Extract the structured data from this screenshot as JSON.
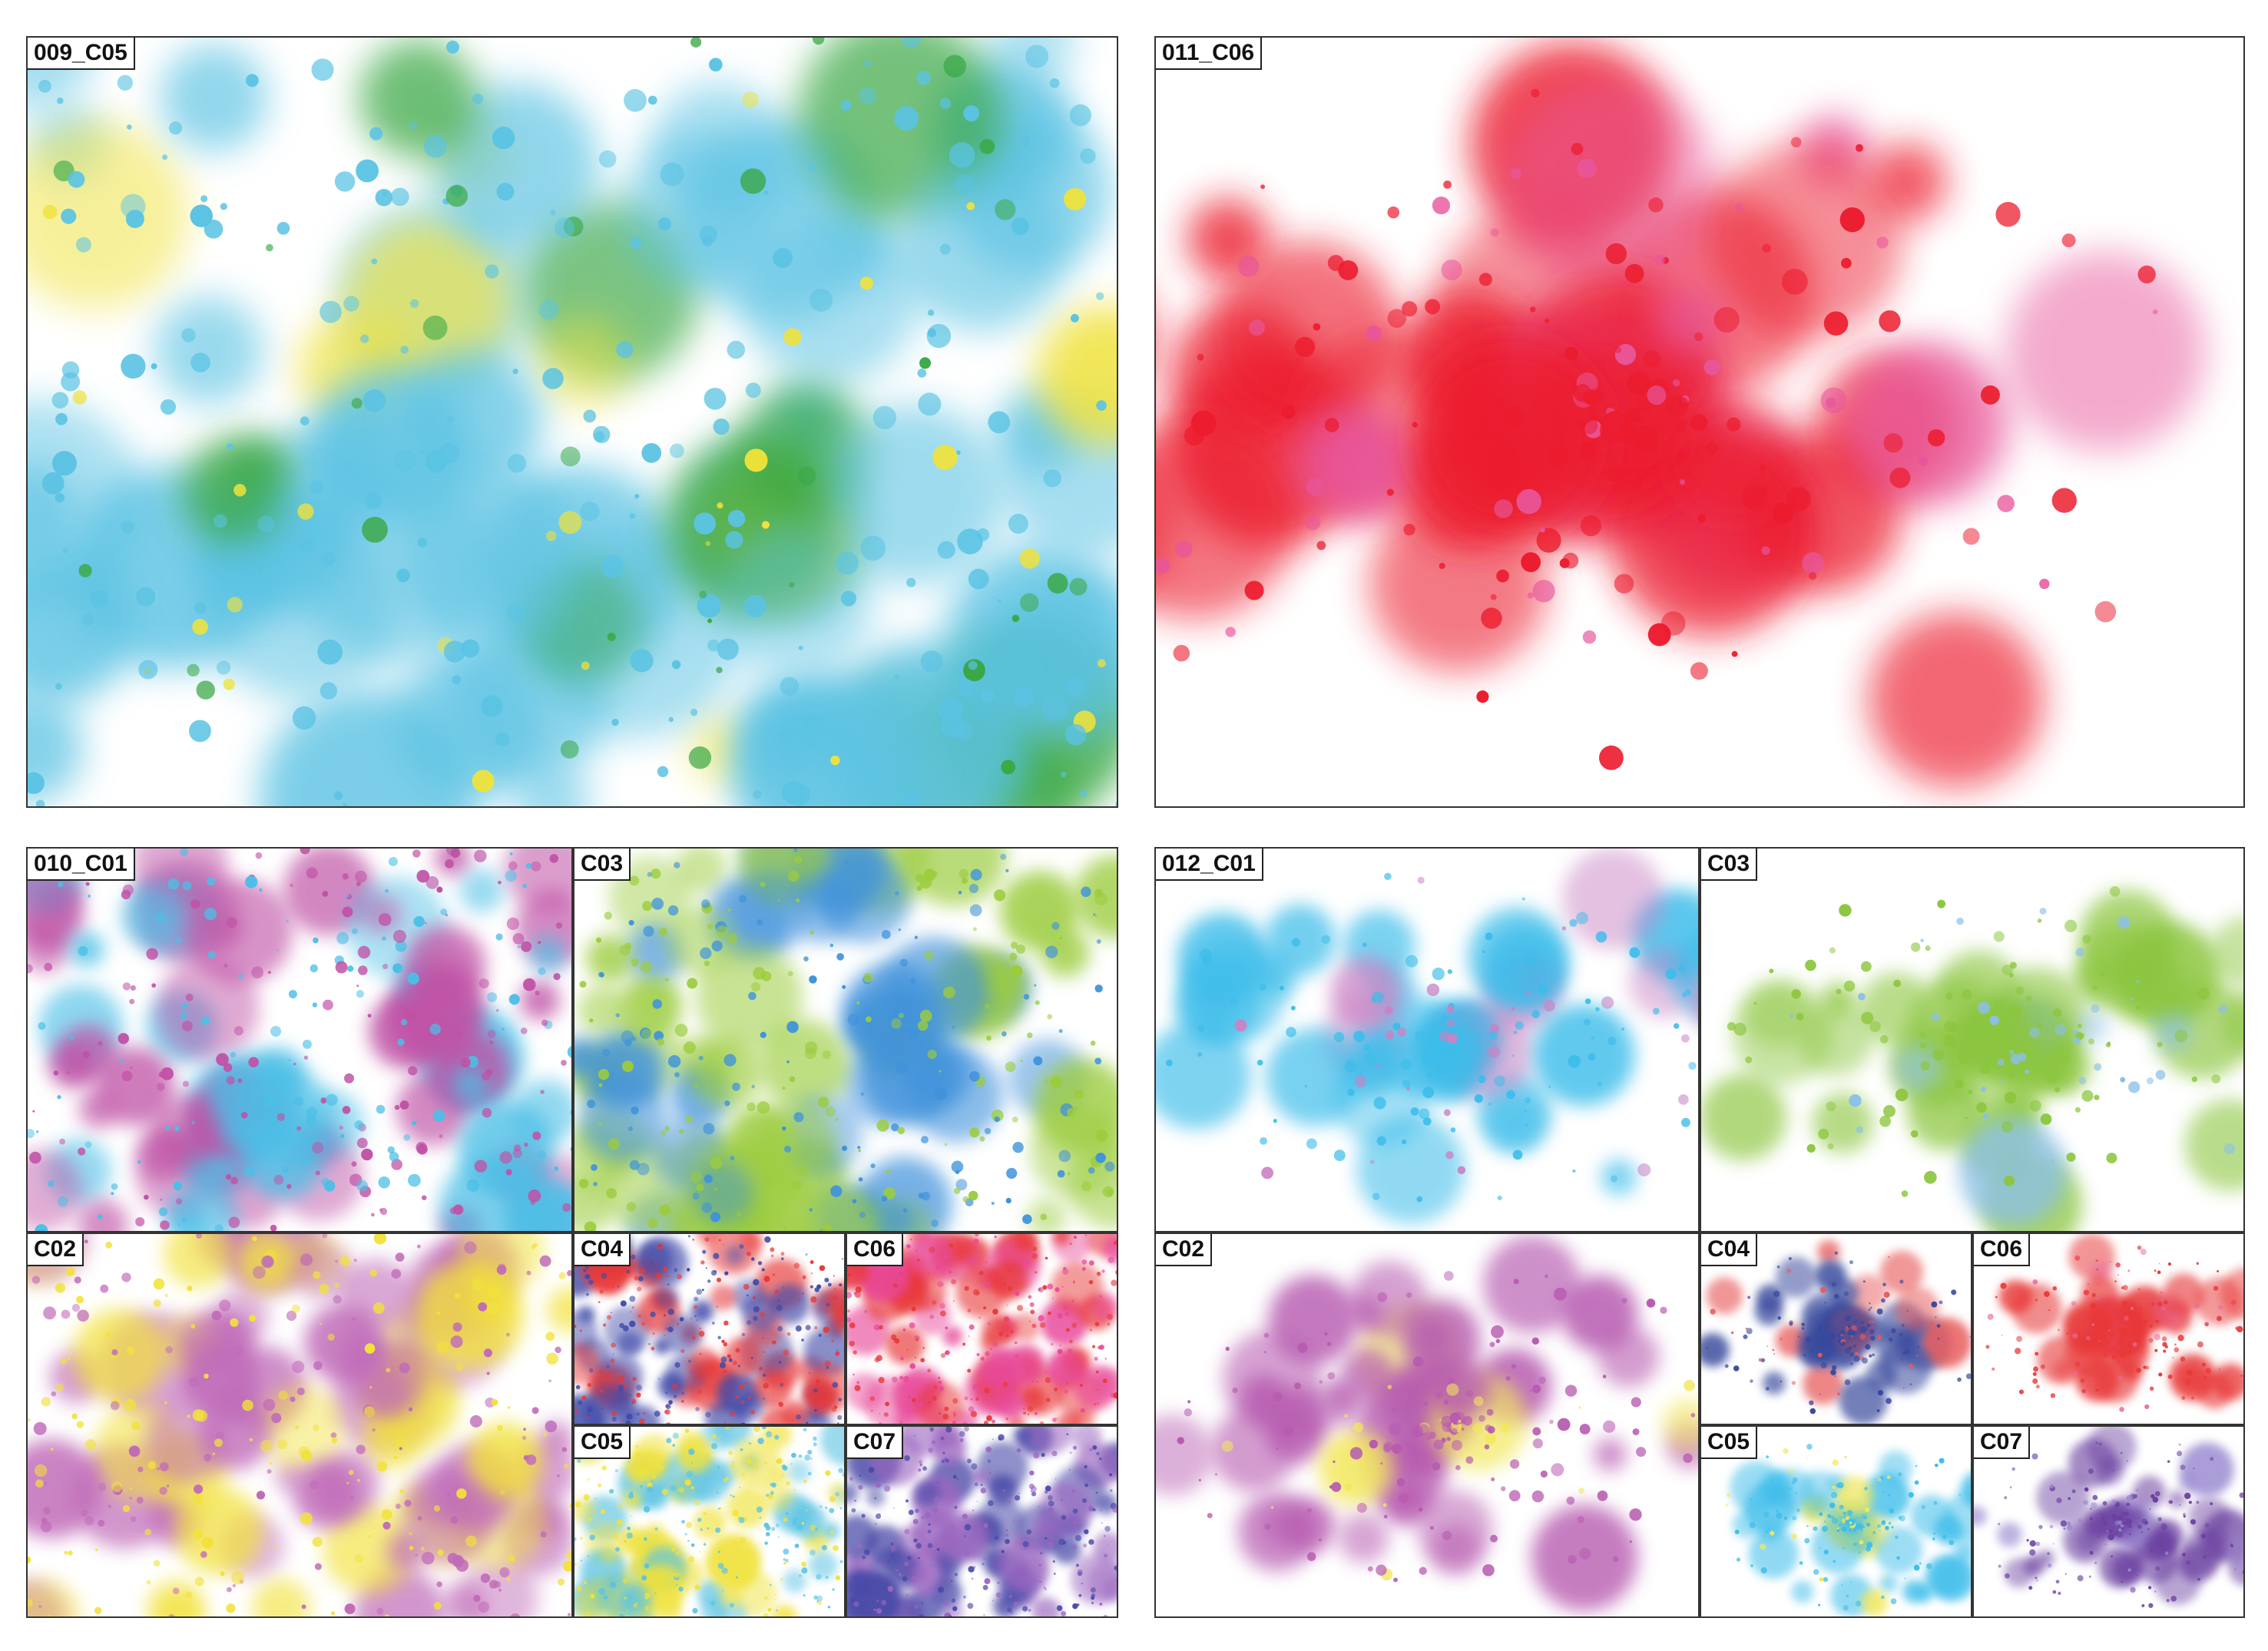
{
  "panels": [
    {
      "label": "009_C05"
    },
    {
      "label": "011_C06"
    },
    {
      "label": "010_C01"
    },
    {
      "label": "C03"
    },
    {
      "label": "C02"
    },
    {
      "label": "C04"
    },
    {
      "label": "C06"
    },
    {
      "label": "C05"
    },
    {
      "label": "C07"
    },
    {
      "label": "012_C01"
    },
    {
      "label": "C03"
    },
    {
      "label": "C02"
    },
    {
      "label": "C04"
    },
    {
      "label": "C06"
    },
    {
      "label": "C05"
    },
    {
      "label": "C07"
    }
  ]
}
